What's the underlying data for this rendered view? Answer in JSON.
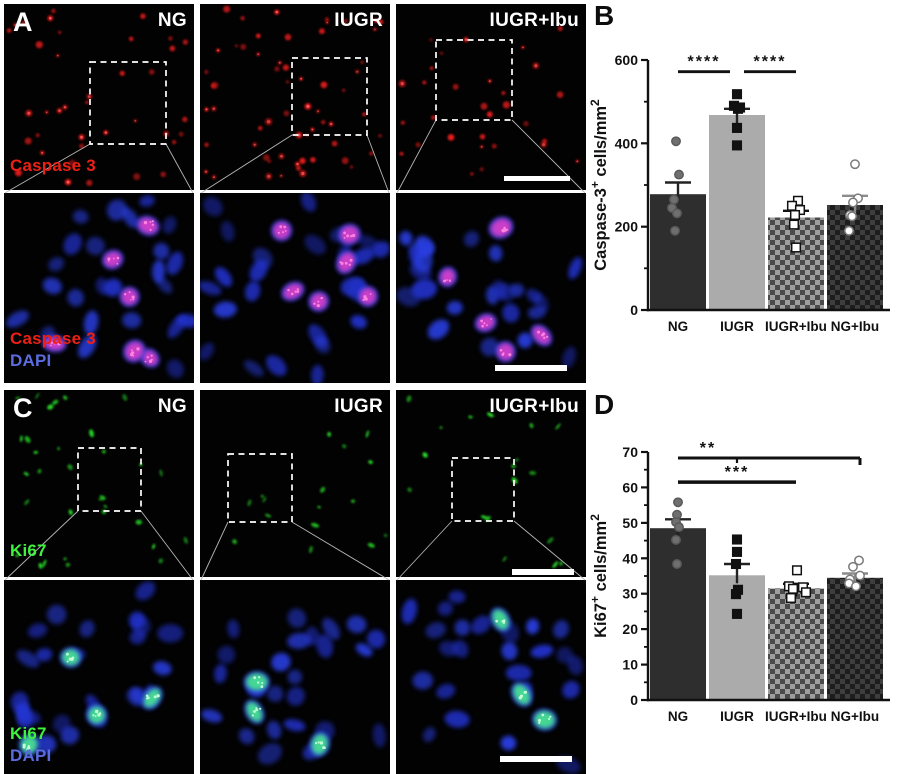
{
  "microscopy": {
    "panel_a": {
      "letter": "A",
      "column_labels": [
        "NG",
        "IUGR",
        "IUGR+Ibu"
      ],
      "marker_label": "Caspase 3",
      "counterstain_label": "DAPI",
      "marker_color": "#ed2015",
      "counterstain_color": "#5b6ce0",
      "signal_color": "#e81a1a",
      "nuclei_color": "#2433cf"
    },
    "panel_c": {
      "letter": "C",
      "column_labels": [
        "NG",
        "IUGR",
        "IUGR+Ibu"
      ],
      "marker_label": "Ki67",
      "counterstain_label": "DAPI",
      "marker_color": "#3ef23e",
      "counterstain_color": "#5b6ce0",
      "signal_color": "#2ce82c",
      "nuclei_color": "#2433cf"
    }
  },
  "chart_data": [
    {
      "letter": "B",
      "type": "bar",
      "title": "",
      "categories": [
        "NG",
        "IUGR",
        "IUGR+Ibu",
        "NG+Ibu"
      ],
      "values": [
        278,
        468,
        222,
        252
      ],
      "sem": [
        28,
        15,
        16,
        22
      ],
      "points": [
        [
          405,
          325,
          265,
          245,
          232,
          190
        ],
        [
          518,
          490,
          486,
          483,
          437,
          395
        ],
        [
          262,
          250,
          240,
          228,
          205,
          150
        ],
        [
          350,
          268,
          258,
          228,
          225,
          190
        ]
      ],
      "ylabel": "Caspase-3+ cells/mm2",
      "ylabel_parts": [
        {
          "t": "Caspase-3"
        },
        {
          "t": "+",
          "sup": true
        },
        {
          "t": " cells/mm"
        },
        {
          "t": "2",
          "sup": true
        }
      ],
      "xlabel": "",
      "ylim": [
        0,
        600
      ],
      "yticks": [
        0,
        200,
        400,
        600
      ],
      "minor_step": 100,
      "grid": false,
      "legend": "none",
      "significance": [
        {
          "from": "NG",
          "to": "IUGR",
          "label": "****",
          "y_value": 572
        },
        {
          "from": "IUGR",
          "to": "IUGR+Ibu",
          "label": "****",
          "y_value": 572
        }
      ],
      "bar_styles": [
        {
          "fill": "#2e2e2e",
          "pattern": "solid"
        },
        {
          "fill": "#ababab",
          "pattern": "solid"
        },
        {
          "fill": "#9e9e9e",
          "pattern": "checker",
          "pattern_color": "#4a4a4a"
        },
        {
          "fill": "#1d1d1d",
          "pattern": "checker",
          "pattern_color": "#3e3e3e"
        }
      ],
      "point_styles": [
        {
          "shape": "circle",
          "fill": "#6f6f6f",
          "stroke": "#5a5a5a"
        },
        {
          "shape": "square",
          "fill": "#111111",
          "stroke": "#111111"
        },
        {
          "shape": "square",
          "fill": "#ffffff",
          "stroke": "#111111"
        },
        {
          "shape": "circle",
          "fill": "#ffffff",
          "stroke": "#7a7a7a"
        }
      ],
      "error_colors": [
        "#222222",
        "#222222",
        "#111111",
        "#8c8c8c"
      ]
    },
    {
      "letter": "D",
      "type": "bar",
      "title": "",
      "categories": [
        "NG",
        "IUGR",
        "IUGR+Ibu",
        "NG+Ibu"
      ],
      "values": [
        48.5,
        35.2,
        31.5,
        34.5
      ],
      "sem": [
        2.5,
        3.2,
        1.3,
        1.2
      ],
      "points": [
        [
          55.8,
          52.3,
          50.2,
          48.8,
          45.2,
          38.4
        ],
        [
          45.3,
          41.8,
          38.4,
          31.1,
          29.9,
          24.3
        ],
        [
          36.6,
          32.1,
          31.8,
          31.4,
          30.4,
          28.8
        ],
        [
          39.4,
          37.6,
          35.1,
          34,
          32.9,
          32.1
        ]
      ],
      "ylabel": "Ki67+ cells/mm2",
      "ylabel_parts": [
        {
          "t": "Ki67"
        },
        {
          "t": "+",
          "sup": true
        },
        {
          "t": " cells/mm"
        },
        {
          "t": "2",
          "sup": true
        }
      ],
      "xlabel": "",
      "ylim": [
        0,
        70
      ],
      "yticks": [
        0,
        10,
        20,
        30,
        40,
        50,
        60,
        70
      ],
      "minor_step": 5,
      "grid": false,
      "legend": "none",
      "significance": [
        {
          "from": "NG",
          "to": "NG+Ibu",
          "label": "**",
          "y_value": 68.3,
          "style": "bracket"
        },
        {
          "from": "NG",
          "to": "IUGR+Ibu",
          "label": "***",
          "y_value": 61.5
        }
      ],
      "bar_styles": [
        {
          "fill": "#2e2e2e",
          "pattern": "solid"
        },
        {
          "fill": "#ababab",
          "pattern": "solid"
        },
        {
          "fill": "#9e9e9e",
          "pattern": "checker",
          "pattern_color": "#4a4a4a"
        },
        {
          "fill": "#1d1d1d",
          "pattern": "checker",
          "pattern_color": "#3e3e3e"
        }
      ],
      "point_styles": [
        {
          "shape": "circle",
          "fill": "#6f6f6f",
          "stroke": "#5a5a5a"
        },
        {
          "shape": "square",
          "fill": "#111111",
          "stroke": "#111111"
        },
        {
          "shape": "square",
          "fill": "#ffffff",
          "stroke": "#111111"
        },
        {
          "shape": "circle",
          "fill": "#ffffff",
          "stroke": "#7a7a7a"
        }
      ],
      "error_colors": [
        "#222222",
        "#222222",
        "#111111",
        "#8c8c8c"
      ]
    }
  ]
}
